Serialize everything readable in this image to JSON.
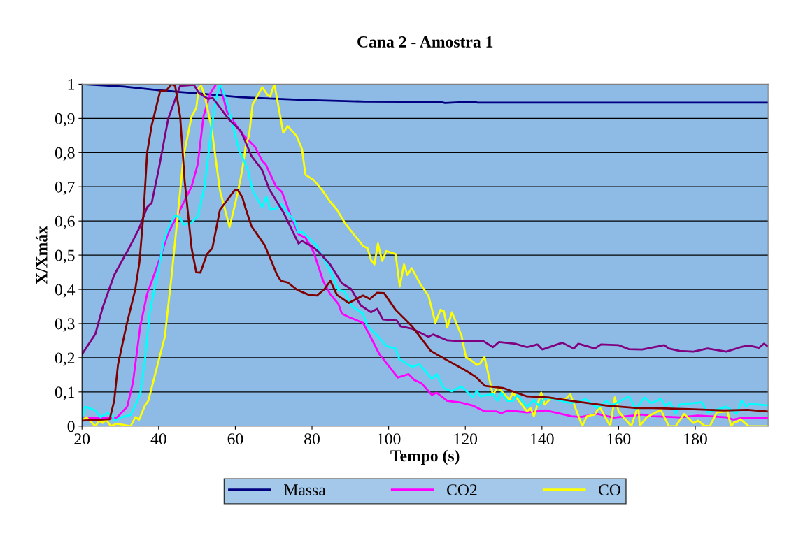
{
  "chart_data": {
    "type": "line",
    "title": "Cana 2 - Amostra 1",
    "xlabel": "Tempo (s)",
    "ylabel": "X/Xmáx",
    "xlim": [
      20,
      199
    ],
    "xticks": [
      20,
      40,
      60,
      80,
      100,
      120,
      140,
      160,
      180
    ],
    "ylim": [
      0,
      1
    ],
    "yticks": [
      0,
      {
        "value": 0.1,
        "label": "0,1"
      },
      {
        "value": 0.2,
        "label": "0,2"
      },
      {
        "value": 0.3,
        "label": "0,3"
      },
      {
        "value": 0.4,
        "label": "0,4"
      },
      {
        "value": 0.5,
        "label": "0,5"
      },
      {
        "value": 0.6,
        "label": "0,6"
      },
      {
        "value": 0.7,
        "label": "0,7"
      },
      {
        "value": 0.8,
        "label": "0,8"
      },
      {
        "value": 0.9,
        "label": "0,9"
      },
      1
    ],
    "grid": "y",
    "legend": "bottom",
    "marker": "none",
    "line_style": "solid",
    "series": [
      {
        "name": "Massa",
        "color": "#000080",
        "x": [
          20,
          30.9,
          40.1,
          49.2,
          61.5,
          77.4,
          93.9,
          113.5,
          114.7,
          122,
          123.2,
          144.2,
          198.8
        ],
        "values": [
          1.0,
          0.993,
          0.982,
          0.974,
          0.962,
          0.954,
          0.949,
          0.948,
          0.945,
          0.949,
          0.946,
          0.946,
          0.946
        ]
      },
      {
        "name": "CO2",
        "color": "#ff00ff",
        "x": [
          20,
          24.8,
          29,
          31.8,
          33.3,
          35.2,
          37,
          38.8,
          40.7,
          42.5,
          45,
          46.5,
          48.6,
          50.2,
          51.7,
          53.5,
          55,
          56,
          57.8,
          61.5,
          63.9,
          65.1,
          67,
          67.9,
          70.6,
          72.2,
          74.3,
          76.5,
          78.3,
          80.4,
          81.7,
          82.9,
          84.7,
          86.9,
          87.8,
          89.6,
          93.3,
          95.1,
          97.6,
          100,
          102.4,
          105.2,
          106.7,
          108.6,
          111.3,
          112.5,
          115.3,
          118.4,
          122,
          125.1,
          128.1,
          129.4,
          131.2,
          136.1,
          141,
          144.2,
          147.7,
          150.2,
          154.4,
          158.7,
          166.1,
          169.1,
          175.9,
          180.7,
          188.1,
          189.9,
          192.4,
          198.8
        ],
        "values": [
          0.026,
          0.023,
          0.024,
          0.057,
          0.128,
          0.292,
          0.387,
          0.442,
          0.503,
          0.565,
          0.619,
          0.653,
          0.701,
          0.766,
          0.906,
          0.974,
          1.0,
          1.0,
          0.92,
          0.858,
          0.831,
          0.817,
          0.776,
          0.766,
          0.701,
          0.684,
          0.619,
          0.561,
          0.551,
          0.51,
          0.466,
          0.425,
          0.387,
          0.357,
          0.329,
          0.319,
          0.302,
          0.265,
          0.21,
          0.176,
          0.142,
          0.152,
          0.135,
          0.125,
          0.091,
          0.098,
          0.074,
          0.07,
          0.06,
          0.043,
          0.043,
          0.038,
          0.046,
          0.04,
          0.046,
          0.038,
          0.029,
          0.027,
          0.036,
          0.025,
          0.034,
          0.029,
          0.026,
          0.031,
          0.026,
          0.019,
          0.025,
          0.025
        ]
      },
      {
        "name": "CO",
        "color": "#ffff00",
        "x": [
          20,
          21.1,
          23.5,
          24.5,
          25.4,
          26.3,
          27.5,
          29.1,
          32.7,
          33.9,
          34.9,
          36.4,
          37.3,
          41.6,
          43.4,
          45,
          46.5,
          48.6,
          49.8,
          50.5,
          51.1,
          52,
          53.8,
          56,
          58.5,
          60.6,
          61.8,
          62.7,
          63.6,
          64.5,
          67,
          68.5,
          69.1,
          70.2,
          72.5,
          73.7,
          76,
          77.4,
          78.3,
          80.4,
          82.6,
          84.7,
          86.5,
          88.7,
          93.3,
          94.5,
          95.4,
          96.3,
          97.2,
          98.3,
          99.4,
          101.8,
          102.9,
          104,
          104.9,
          106,
          108.3,
          110.4,
          112.2,
          113.5,
          114.4,
          115.3,
          116.5,
          119,
          120.2,
          121.1,
          123,
          123.9,
          125,
          127.2,
          128.4,
          131.5,
          132.4,
          136.1,
          137,
          137.9,
          139.8,
          140.7,
          142.2,
          146.2,
          147.4,
          150.5,
          151.7,
          153.8,
          155,
          157.8,
          159,
          160,
          163.3,
          165.1,
          165.5,
          167.3,
          171,
          173.1,
          174.9,
          177.1,
          179.5,
          180.7,
          182.3,
          183.8,
          185.6,
          188.4,
          189.3,
          190.2,
          190.8,
          191.8,
          193.9,
          198.8
        ],
        "values": [
          0.016,
          0.026,
          0,
          0.016,
          0.009,
          0.019,
          0,
          0.007,
          0,
          0.026,
          0.019,
          0.06,
          0.074,
          0.261,
          0.442,
          0.619,
          0.79,
          0.906,
          0.93,
          0.991,
          0.995,
          0.967,
          0.872,
          0.688,
          0.582,
          0.681,
          0.749,
          0.817,
          0.851,
          0.94,
          0.991,
          0.967,
          0.964,
          1.0,
          0.858,
          0.877,
          0.848,
          0.81,
          0.735,
          0.72,
          0.691,
          0.657,
          0.633,
          0.592,
          0.527,
          0.52,
          0.486,
          0.473,
          0.534,
          0.483,
          0.512,
          0.503,
          0.408,
          0.473,
          0.442,
          0.462,
          0.415,
          0.381,
          0.302,
          0.34,
          0.336,
          0.289,
          0.333,
          0.265,
          0.2,
          0.196,
          0.179,
          0.184,
          0.203,
          0.091,
          0.115,
          0.077,
          0.098,
          0.043,
          0.053,
          0.029,
          0.098,
          0.063,
          0.08,
          0.08,
          0.093,
          0,
          0.029,
          0.034,
          0.057,
          0,
          0.084,
          0.043,
          0,
          0.06,
          0,
          0.026,
          0.048,
          0,
          0,
          0.036,
          0.009,
          0.016,
          0.002,
          0,
          0.04,
          0.043,
          0,
          0.012,
          0.012,
          0.02,
          0,
          0
        ]
      },
      {
        "color": "#00ffff",
        "x": [
          20,
          20.8,
          23.5,
          24.8,
          26.6,
          27.8,
          28.4,
          30.3,
          32.7,
          33.9,
          35.2,
          36.4,
          37.6,
          39.4,
          41.3,
          42.5,
          44.3,
          45.6,
          46.5,
          48.6,
          50.2,
          52,
          53.8,
          55,
          56.1,
          57.8,
          60.9,
          63.3,
          64.5,
          67,
          68.1,
          69.1,
          70.6,
          71.9,
          75.5,
          76.5,
          77.4,
          81,
          84.7,
          86.9,
          88.4,
          90.5,
          93.3,
          94.5,
          97,
          99.4,
          101.8,
          102.8,
          106.1,
          108,
          111.3,
          112.5,
          114.4,
          116.5,
          119,
          122,
          123,
          123.9,
          127.2,
          128.4,
          129.4,
          130.9,
          132.4,
          133.6,
          136.1,
          137.9,
          139.1,
          141,
          142.8,
          147.7,
          151.4,
          154.4,
          156.9,
          158.1,
          162.7,
          164.5,
          166.7,
          168.5,
          171,
          172.2,
          173.4,
          174.9,
          175.9,
          181.7,
          183.2,
          188.1,
          190.8,
          192.1,
          193.3,
          194.2,
          198.8
        ],
        "values": [
          0.019,
          0.057,
          0.046,
          0.026,
          0.038,
          0.033,
          0.016,
          0.026,
          0.033,
          0.06,
          0.094,
          0.19,
          0.326,
          0.428,
          0.538,
          0.578,
          0.616,
          0.609,
          0.589,
          0.596,
          0.613,
          0.701,
          0.872,
          0.96,
          1.0,
          0.947,
          0.81,
          0.749,
          0.688,
          0.64,
          0.671,
          0.633,
          0.636,
          0.65,
          0.599,
          0.565,
          0.568,
          0.531,
          0.456,
          0.398,
          0.394,
          0.35,
          0.329,
          0.292,
          0.265,
          0.234,
          0.227,
          0.196,
          0.173,
          0.181,
          0.138,
          0.152,
          0.111,
          0.102,
          0.116,
          0.084,
          0.104,
          0.087,
          0.094,
          0.074,
          0.098,
          0.074,
          0.074,
          0.091,
          0.057,
          0.077,
          0.06,
          0.084,
          0.08,
          0.067,
          0.079,
          0.053,
          0.074,
          0.06,
          0.087,
          0.05,
          0.084,
          0.067,
          0.08,
          0.06,
          0.07,
          0.036,
          0.063,
          0.07,
          0.04,
          0.057,
          0.036,
          0.075,
          0.057,
          0.065,
          0.061
        ]
      },
      {
        "color": "#800080",
        "x": [
          20,
          23.5,
          25.4,
          28.4,
          32.1,
          34.9,
          37,
          38.2,
          40.1,
          42.5,
          45.6,
          49.2,
          50.5,
          52.9,
          54.1,
          58.4,
          61.5,
          64.2,
          67,
          68.8,
          72.5,
          76.5,
          77.4,
          79.8,
          81.7,
          84.7,
          87.8,
          90.2,
          92.7,
          95.4,
          97,
          98.5,
          102.1,
          103.1,
          106.1,
          110.4,
          111.6,
          115.3,
          119,
          124.8,
          127.2,
          128.8,
          133,
          136.1,
          138.8,
          140.1,
          145.3,
          148.3,
          149.5,
          153.8,
          155.4,
          159.9,
          162.7,
          166.1,
          171.9,
          173.1,
          175.9,
          179.5,
          183.2,
          188.1,
          191.8,
          193.9,
          196.6,
          197.9,
          198.8
        ],
        "values": [
          0.21,
          0.27,
          0.347,
          0.442,
          0.517,
          0.578,
          0.64,
          0.653,
          0.756,
          0.899,
          0.995,
          0.998,
          0.974,
          0.957,
          0.96,
          0.896,
          0.862,
          0.79,
          0.749,
          0.694,
          0.626,
          0.534,
          0.541,
          0.527,
          0.51,
          0.473,
          0.418,
          0.401,
          0.353,
          0.333,
          0.343,
          0.312,
          0.309,
          0.292,
          0.285,
          0.261,
          0.268,
          0.251,
          0.248,
          0.248,
          0.231,
          0.246,
          0.241,
          0.231,
          0.239,
          0.224,
          0.244,
          0.227,
          0.241,
          0.227,
          0.239,
          0.237,
          0.225,
          0.224,
          0.237,
          0.227,
          0.22,
          0.218,
          0.227,
          0.218,
          0.231,
          0.236,
          0.229,
          0.241,
          0.234
        ]
      },
      {
        "color": "#800000",
        "x": [
          20,
          27.2,
          28.4,
          29.4,
          31.5,
          33.9,
          35,
          36.1,
          37,
          38.2,
          40.4,
          41.9,
          43.4,
          44.3,
          45.6,
          46.8,
          48.6,
          49.8,
          50.9,
          52.6,
          54,
          56,
          58.1,
          59.9,
          60.6,
          61.8,
          62.7,
          64.2,
          67.6,
          69.4,
          70.9,
          71.9,
          73.7,
          76.2,
          79.2,
          81.3,
          83.2,
          84.8,
          86.5,
          89.6,
          93.3,
          95.1,
          97,
          98.8,
          101.8,
          106.1,
          111,
          114.7,
          120.2,
          122.6,
          125.1,
          130,
          136.1,
          141.6,
          147.7,
          156.9,
          164.8,
          169.1,
          178.3,
          187.5,
          193.6,
          198.8
        ],
        "values": [
          0.016,
          0.02,
          0.074,
          0.18,
          0.29,
          0.4,
          0.48,
          0.63,
          0.8,
          0.88,
          0.98,
          0.98,
          1.0,
          0.995,
          0.906,
          0.715,
          0.52,
          0.45,
          0.449,
          0.503,
          0.52,
          0.633,
          0.664,
          0.691,
          0.691,
          0.67,
          0.636,
          0.585,
          0.53,
          0.483,
          0.442,
          0.425,
          0.42,
          0.398,
          0.384,
          0.382,
          0.4,
          0.425,
          0.384,
          0.36,
          0.382,
          0.372,
          0.39,
          0.389,
          0.34,
          0.292,
          0.22,
          0.196,
          0.162,
          0.145,
          0.118,
          0.111,
          0.087,
          0.084,
          0.074,
          0.06,
          0.053,
          0.053,
          0.05,
          0.046,
          0.048,
          0.043
        ]
      }
    ]
  }
}
